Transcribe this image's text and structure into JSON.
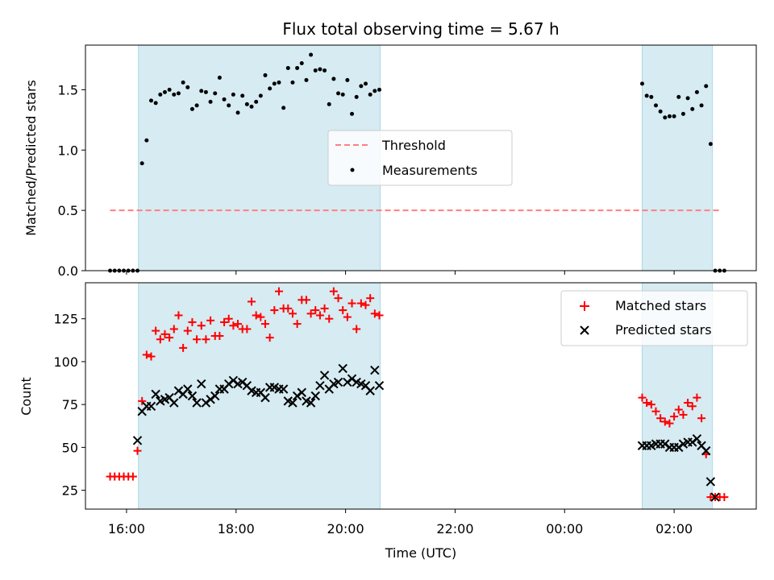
{
  "figure": {
    "title": "Flux total observing time = 5.67 h",
    "xlabel": "Time (UTC)"
  },
  "colors": {
    "shade": "#add8e6",
    "threshold": "#ff7f7f",
    "measurement": "#000000",
    "matched": "#ff0000",
    "predicted": "#000000"
  },
  "chart_data": [
    {
      "type": "scatter",
      "title": "Flux total observing time = 5.67 h",
      "ylabel": "Matched/Predicted stars",
      "xlabel": "",
      "xlim": [
        "15:15",
        "03:30"
      ],
      "ylim": [
        0,
        1.87
      ],
      "yticks": [
        0.0,
        0.5,
        1.0,
        1.5
      ],
      "ytick_labels": [
        "0.0",
        "0.5",
        "1.0",
        "1.5"
      ],
      "shaded_intervals": [
        [
          "16:13",
          "20:38"
        ],
        [
          "01:25",
          "02:42"
        ]
      ],
      "threshold": {
        "name": "Threshold",
        "value": 0.5,
        "x_range": [
          "15:42",
          "02:50"
        ]
      },
      "legend": {
        "placement": "center",
        "entries": [
          "Threshold",
          "Measurements"
        ]
      },
      "series": [
        {
          "name": "Measurements",
          "x": [
            "15:42",
            "15:47",
            "15:52",
            "15:57",
            "16:02",
            "16:07",
            "16:12",
            "16:17",
            "16:22",
            "16:27",
            "16:32",
            "16:37",
            "16:42",
            "16:47",
            "16:52",
            "16:57",
            "17:02",
            "17:07",
            "17:12",
            "17:17",
            "17:22",
            "17:27",
            "17:32",
            "17:37",
            "17:42",
            "17:47",
            "17:52",
            "17:57",
            "18:02",
            "18:07",
            "18:12",
            "18:17",
            "18:22",
            "18:27",
            "18:32",
            "18:37",
            "18:42",
            "18:47",
            "18:52",
            "18:57",
            "19:02",
            "19:07",
            "19:12",
            "19:17",
            "19:22",
            "19:27",
            "19:32",
            "19:37",
            "19:42",
            "19:47",
            "19:52",
            "19:57",
            "20:02",
            "20:07",
            "20:12",
            "20:17",
            "20:22",
            "20:27",
            "20:32",
            "20:37",
            "01:25",
            "01:30",
            "01:35",
            "01:40",
            "01:45",
            "01:50",
            "01:55",
            "02:00",
            "02:05",
            "02:10",
            "02:15",
            "02:20",
            "02:25",
            "02:30",
            "02:35",
            "02:40",
            "02:45",
            "02:50",
            "02:55"
          ],
          "y": [
            0.0,
            0.0,
            0.0,
            0.0,
            0.0,
            0.0,
            0.0,
            0.89,
            1.08,
            1.41,
            1.39,
            1.46,
            1.48,
            1.5,
            1.46,
            1.47,
            1.56,
            1.52,
            1.34,
            1.37,
            1.49,
            1.48,
            1.4,
            1.47,
            1.6,
            1.42,
            1.37,
            1.46,
            1.31,
            1.45,
            1.38,
            1.36,
            1.4,
            1.45,
            1.62,
            1.51,
            1.55,
            1.56,
            1.35,
            1.68,
            1.56,
            1.68,
            1.72,
            1.58,
            1.79,
            1.66,
            1.67,
            1.66,
            1.38,
            1.59,
            1.47,
            1.46,
            1.58,
            1.3,
            1.44,
            1.53,
            1.55,
            1.46,
            1.49,
            1.5,
            1.55,
            1.45,
            1.44,
            1.37,
            1.32,
            1.27,
            1.28,
            1.28,
            1.44,
            1.3,
            1.43,
            1.34,
            1.48,
            1.37,
            1.53,
            1.05,
            0.0,
            0.0,
            0.0
          ]
        }
      ]
    },
    {
      "type": "scatter",
      "ylabel": "Count",
      "xlabel": "Time (UTC)",
      "xlim": [
        "15:15",
        "03:30"
      ],
      "ylim": [
        14,
        146
      ],
      "yticks": [
        25,
        50,
        75,
        100,
        125
      ],
      "ytick_labels": [
        "25",
        "50",
        "75",
        "100",
        "125"
      ],
      "xticks": [
        "16:00",
        "18:00",
        "20:00",
        "22:00",
        "00:00",
        "02:00"
      ],
      "shaded_intervals": [
        [
          "16:13",
          "20:38"
        ],
        [
          "01:25",
          "02:42"
        ]
      ],
      "legend": {
        "placement": "upper right",
        "entries": [
          "Matched stars",
          "Predicted stars"
        ]
      },
      "x": [
        "15:42",
        "15:47",
        "15:52",
        "15:57",
        "16:02",
        "16:07",
        "16:12",
        "16:17",
        "16:22",
        "16:27",
        "16:32",
        "16:37",
        "16:42",
        "16:47",
        "16:52",
        "16:57",
        "17:02",
        "17:07",
        "17:12",
        "17:17",
        "17:22",
        "17:27",
        "17:32",
        "17:37",
        "17:42",
        "17:47",
        "17:52",
        "17:57",
        "18:02",
        "18:07",
        "18:12",
        "18:17",
        "18:22",
        "18:27",
        "18:32",
        "18:37",
        "18:42",
        "18:47",
        "18:52",
        "18:57",
        "19:02",
        "19:07",
        "19:12",
        "19:17",
        "19:22",
        "19:27",
        "19:32",
        "19:37",
        "19:42",
        "19:47",
        "19:52",
        "19:57",
        "20:02",
        "20:07",
        "20:12",
        "20:17",
        "20:22",
        "20:27",
        "20:32",
        "20:37",
        "01:25",
        "01:30",
        "01:35",
        "01:40",
        "01:45",
        "01:50",
        "01:55",
        "02:00",
        "02:05",
        "02:10",
        "02:15",
        "02:20",
        "02:25",
        "02:30",
        "02:35",
        "02:40",
        "02:45",
        "02:50",
        "02:55"
      ],
      "series": [
        {
          "name": "Matched stars",
          "marker": "plus",
          "values": [
            33,
            33,
            33,
            33,
            33,
            33,
            48,
            77,
            104,
            103,
            118,
            113,
            116,
            114,
            119,
            127,
            108,
            118,
            123,
            113,
            121,
            113,
            124,
            115,
            115,
            123,
            125,
            121,
            122,
            119,
            119,
            135,
            127,
            126,
            122,
            114,
            130,
            141,
            131,
            131,
            128,
            122,
            136,
            136,
            128,
            130,
            127,
            131,
            125,
            141,
            137,
            130,
            126,
            134,
            119,
            134,
            133,
            137,
            128,
            127,
            79,
            76,
            75,
            71,
            67,
            65,
            64,
            68,
            72,
            69,
            76,
            74,
            79,
            67,
            46,
            21,
            21,
            21,
            21
          ],
          "missing_note": ""
        },
        {
          "name": "Predicted stars",
          "marker": "x",
          "values": [
            null,
            null,
            null,
            null,
            null,
            null,
            54,
            71,
            74,
            74,
            81,
            77,
            78,
            79,
            76,
            83,
            81,
            84,
            80,
            76,
            87,
            76,
            78,
            80,
            84,
            84,
            87,
            89,
            87,
            88,
            86,
            83,
            82,
            82,
            79,
            85,
            85,
            84,
            84,
            77,
            76,
            80,
            82,
            77,
            76,
            80,
            86,
            92,
            84,
            87,
            88,
            96,
            88,
            90,
            88,
            87,
            86,
            83,
            95,
            86,
            51,
            51,
            51,
            52,
            52,
            52,
            50,
            50,
            50,
            52,
            53,
            53,
            55,
            51,
            48,
            30,
            21,
            null,
            null
          ]
        }
      ]
    }
  ]
}
